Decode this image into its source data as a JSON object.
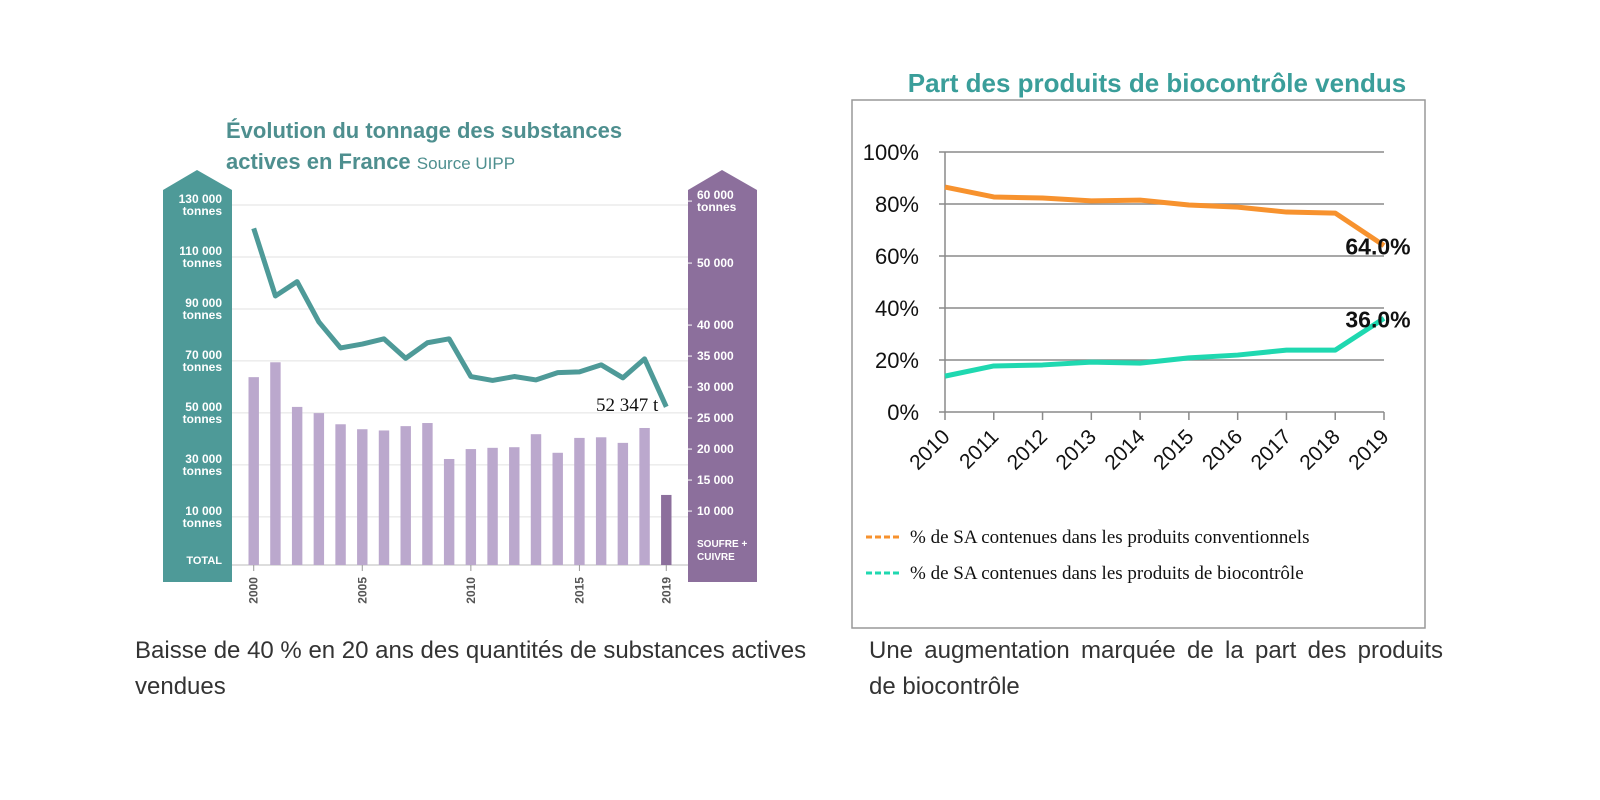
{
  "chart_data": [
    {
      "type": "bar_line",
      "title": "Évolution du tonnage des substances actives en France",
      "source": "Source UIPP",
      "ylabel": "TOTAL",
      "y2label": "SOUFRE + CUIVRE",
      "x": [
        2000,
        2001,
        2002,
        2003,
        2004,
        2005,
        2006,
        2007,
        2008,
        2009,
        2010,
        2011,
        2012,
        2013,
        2014,
        2015,
        2016,
        2017,
        2018,
        2019
      ],
      "xlim": [
        1999,
        2020
      ],
      "xticks": [
        2000,
        2005,
        2010,
        2015,
        2019
      ],
      "ylim": [
        -8500,
        139600
      ],
      "yticks": [
        {
          "value": 130000,
          "label": "130 000 tonnes"
        },
        {
          "value": 110000,
          "label": "110 000 tonnes"
        },
        {
          "value": 90000,
          "label": "90 000 tonnes"
        },
        {
          "value": 70000,
          "label": "70 000 tonnes"
        },
        {
          "value": 50000,
          "label": "50 000 tonnes"
        },
        {
          "value": 30000,
          "label": "30 000 tonnes"
        },
        {
          "value": 10000,
          "label": "10 000 tonnes"
        }
      ],
      "y2lim": [
        1300,
        63400
      ],
      "y2ticks": [
        {
          "value": 60000,
          "label": "60 000 tonnes"
        },
        {
          "value": 50000,
          "label": "50 000"
        },
        {
          "value": 40000,
          "label": "40 000"
        },
        {
          "value": 35000,
          "label": "35 000"
        },
        {
          "value": 30000,
          "label": "30 000"
        },
        {
          "value": 25000,
          "label": "25 000"
        },
        {
          "value": 20000,
          "label": "20 000"
        },
        {
          "value": 15000,
          "label": "15 000"
        },
        {
          "value": 10000,
          "label": "10 000"
        }
      ],
      "grid": true,
      "series": [
        {
          "type": "line",
          "color": "#4e9a98",
          "values": [
            121000,
            95000,
            100500,
            85000,
            75000,
            76500,
            78500,
            71000,
            77000,
            78500,
            64000,
            62500,
            64000,
            62700,
            65500,
            65800,
            68500,
            63500,
            70800,
            52347
          ]
        },
        {
          "type": "bar",
          "axis": "y2",
          "colors": [
            "#bba8cd",
            "#bba8cd",
            "#bba8cd",
            "#bba8cd",
            "#bba8cd",
            "#bba8cd",
            "#bba8cd",
            "#bba8cd",
            "#bba8cd",
            "#bba8cd",
            "#bba8cd",
            "#bba8cd",
            "#bba8cd",
            "#bba8cd",
            "#bba8cd",
            "#bba8cd",
            "#bba8cd",
            "#bba8cd",
            "#bba8cd",
            "#8c6f9c"
          ],
          "values": [
            31600,
            34000,
            26800,
            25800,
            24000,
            23200,
            23000,
            23700,
            24200,
            18400,
            20000,
            20200,
            20300,
            22400,
            19400,
            21800,
            21900,
            21000,
            23400,
            12600
          ]
        }
      ],
      "annotation": "52 347 t",
      "caption": "Baisse de 40 % en 20 ans des quantités de substances actives vendues"
    },
    {
      "type": "line",
      "title": "Part des produits de biocontrôle vendus",
      "categories": [
        "2010",
        "2011",
        "2012",
        "2013",
        "2014",
        "2015",
        "2016",
        "2017",
        "2018",
        "2019"
      ],
      "ylim": [
        0,
        100
      ],
      "yticks": [
        {
          "value": 0,
          "label": "0%"
        },
        {
          "value": 20,
          "label": "20%"
        },
        {
          "value": 40,
          "label": "40%"
        },
        {
          "value": 60,
          "label": "60%"
        },
        {
          "value": 80,
          "label": "80%"
        },
        {
          "value": 100,
          "label": "100%"
        }
      ],
      "grid": true,
      "legend": "bottom",
      "series": [
        {
          "name": "% de SA contenues dans les produits conventionnels",
          "color": "#f7922e",
          "values": [
            86.5,
            82.7,
            82.3,
            81.2,
            81.5,
            79.6,
            78.8,
            76.9,
            76.5,
            64.0
          ],
          "value_labels": [
            null,
            null,
            null,
            null,
            null,
            null,
            null,
            null,
            null,
            "64.0%"
          ]
        },
        {
          "name": "% de SA contenues dans les produits de biocontrôle",
          "color": "#1fd8b0",
          "values": [
            13.8,
            17.7,
            18.1,
            19.2,
            18.8,
            20.8,
            21.9,
            23.8,
            23.8,
            36.0
          ],
          "value_labels": [
            null,
            null,
            null,
            null,
            null,
            null,
            null,
            null,
            null,
            "36.0%"
          ]
        }
      ],
      "caption": "Une augmentation marquée de la part des produits de biocontrôle"
    }
  ]
}
